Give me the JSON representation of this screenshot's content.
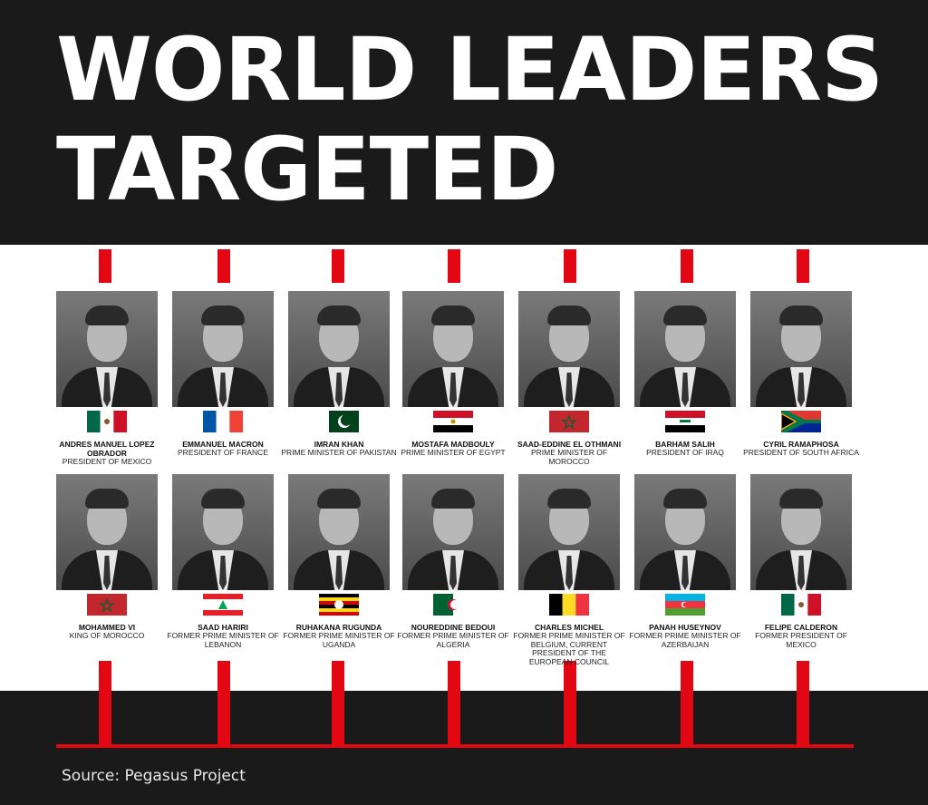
{
  "title": {
    "line1": "WORLD LEADERS",
    "line2": "TARGETED"
  },
  "accent_color": "#e30613",
  "leaders": [
    {
      "name": "ANDRES MANUEL LOPEZ OBRADOR",
      "role": "PRESIDENT OF MEXICO",
      "flag": "mexico-flag"
    },
    {
      "name": "EMMANUEL MACRON",
      "role": "PRESIDENT OF FRANCE",
      "flag": "france-flag"
    },
    {
      "name": "IMRAN KHAN",
      "role": "PRIME MINISTER OF PAKISTAN",
      "flag": "pakistan-flag"
    },
    {
      "name": "MOSTAFA MADBOULY",
      "role": "PRIME MINISTER OF EGYPT",
      "flag": "egypt-flag"
    },
    {
      "name": "SAAD-EDDINE EL OTHMANI",
      "role": "PRIME MINISTER OF MOROCCO",
      "flag": "morocco-flag"
    },
    {
      "name": "BARHAM SALIH",
      "role": "PRESIDENT OF IRAQ",
      "flag": "iraq-flag"
    },
    {
      "name": "CYRIL RAMAPHOSA",
      "role": "PRESIDENT OF SOUTH AFRICA",
      "flag": "south-africa-flag"
    },
    {
      "name": "MOHAMMED VI",
      "role": "KING OF MOROCCO",
      "flag": "morocco-flag"
    },
    {
      "name": "SAAD HARIRI",
      "role": "FORMER PRIME MINISTER OF LEBANON",
      "flag": "lebanon-flag"
    },
    {
      "name": "RUHAKANA RUGUNDA",
      "role": "FORMER PRIME MINISTER OF UGANDA",
      "flag": "uganda-flag"
    },
    {
      "name": "NOUREDDINE BEDOUI",
      "role": "FORMER PRIME MINISTER OF ALGERIA",
      "flag": "algeria-flag"
    },
    {
      "name": "CHARLES MICHEL",
      "role": "FORMER PRIME MINISTER OF BELGIUM, CURRENT PRESIDENT OF THE EUROPEAN COUNCIL",
      "flag": "belgium-flag"
    },
    {
      "name": "PANAH HUSEYNOV",
      "role": "FORMER PRIME MINISTER OF AZERBAIJAN",
      "flag": "azerbaijan-flag"
    },
    {
      "name": "FELIPE CALDERON",
      "role": "FORMER PRESIDENT OF MEXICO",
      "flag": "mexico-flag"
    }
  ],
  "source": "Source: Pegasus Project"
}
